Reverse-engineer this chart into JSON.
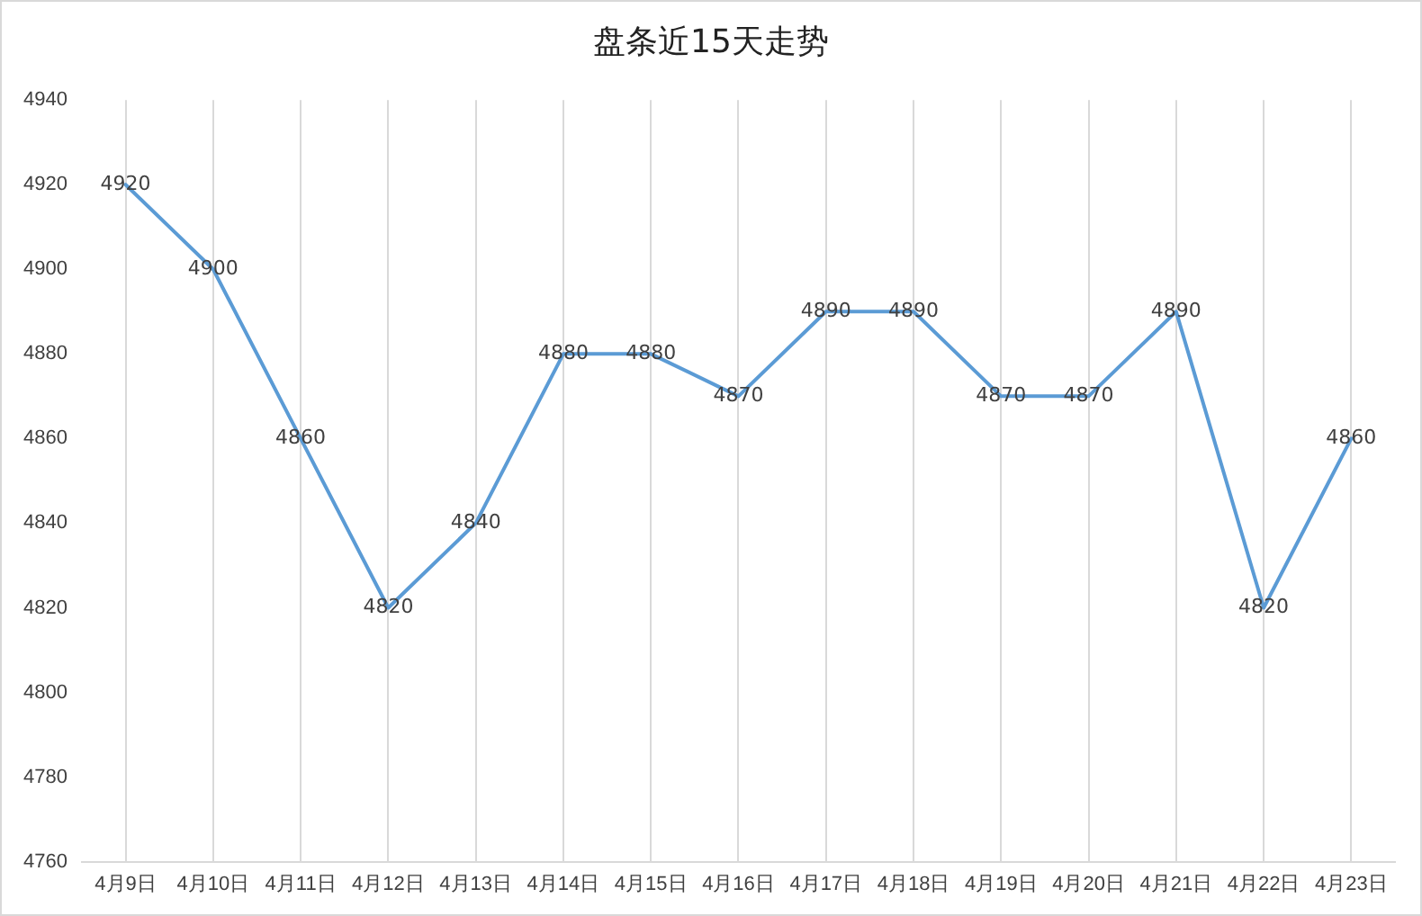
{
  "chart_data": {
    "type": "line",
    "title": "盘条近15天走势",
    "categories": [
      "4月9日",
      "4月10日",
      "4月11日",
      "4月12日",
      "4月13日",
      "4月14日",
      "4月15日",
      "4月16日",
      "4月17日",
      "4月18日",
      "4月19日",
      "4月20日",
      "4月21日",
      "4月22日",
      "4月23日"
    ],
    "series": [
      {
        "color": "#5b9bd5",
        "values": [
          4920,
          4900,
          4860,
          4820,
          4840,
          4880,
          4880,
          4870,
          4890,
          4890,
          4870,
          4870,
          4890,
          4820,
          4860
        ]
      }
    ],
    "ylim": [
      4760,
      4940
    ],
    "yticks": [
      4760,
      4780,
      4800,
      4820,
      4840,
      4860,
      4880,
      4900,
      4920,
      4940
    ],
    "grid": "x",
    "legend": false,
    "marker": "none",
    "line_style": "solid",
    "data_labels": true
  }
}
